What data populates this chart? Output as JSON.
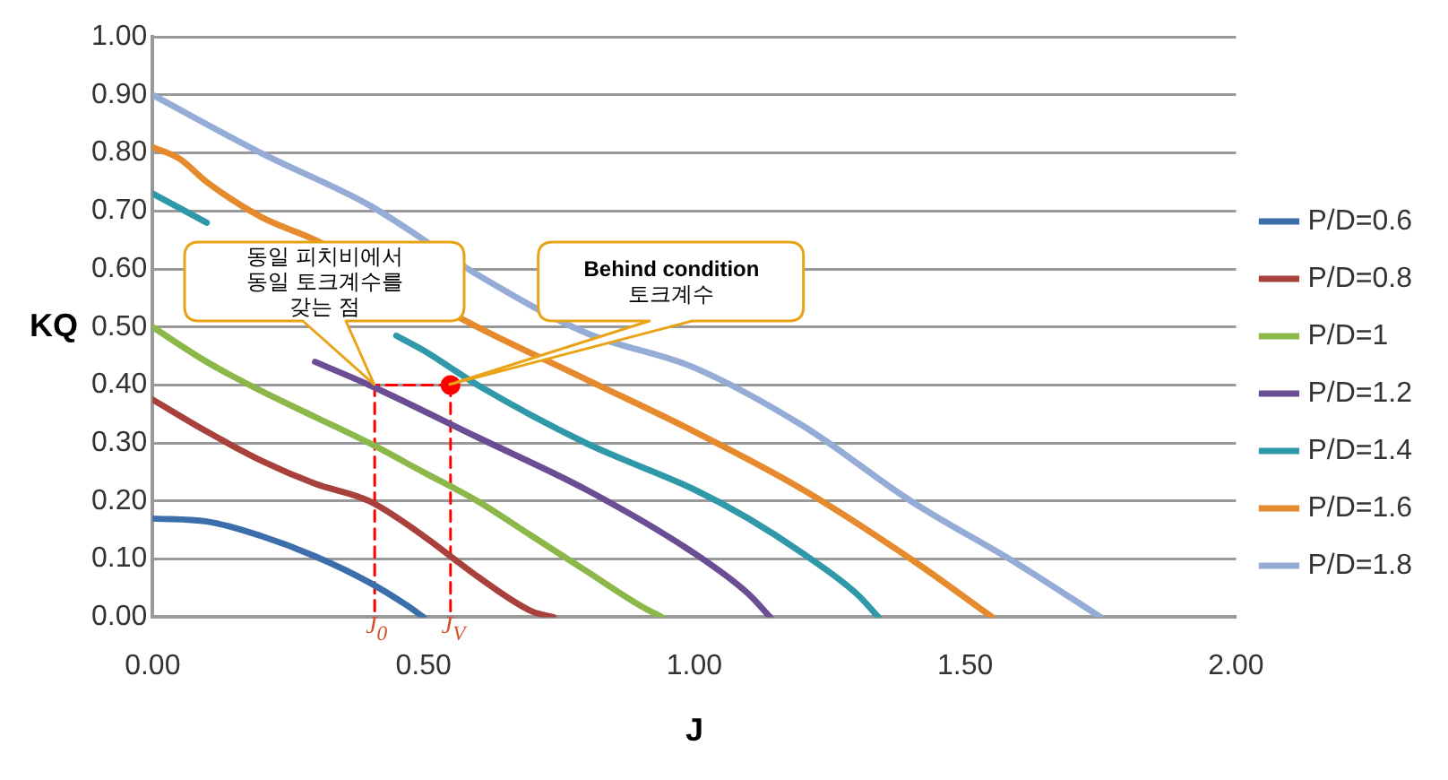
{
  "chart_data": {
    "type": "line",
    "xlabel": "J",
    "ylabel": "KQ",
    "xlim": [
      0,
      2
    ],
    "xticks": [
      {
        "value": 0,
        "label": "0.00"
      },
      {
        "value": 0.5,
        "label": "0.50"
      },
      {
        "value": 1,
        "label": "1.00"
      },
      {
        "value": 1.5,
        "label": "1.50"
      },
      {
        "value": 2,
        "label": "2.00"
      }
    ],
    "ylim": [
      0,
      1
    ],
    "yticks": [
      {
        "value": 0,
        "label": "0.00"
      },
      {
        "value": 0.1,
        "label": "0.10"
      },
      {
        "value": 0.2,
        "label": "0.20"
      },
      {
        "value": 0.3,
        "label": "0.30"
      },
      {
        "value": 0.4,
        "label": "0.40"
      },
      {
        "value": 0.5,
        "label": "0.50"
      },
      {
        "value": 0.6,
        "label": "0.60"
      },
      {
        "value": 0.7,
        "label": "0.70"
      },
      {
        "value": 0.8,
        "label": "0.80"
      },
      {
        "value": 0.9,
        "label": "0.90"
      },
      {
        "value": 1,
        "label": "1.00"
      }
    ],
    "grid": "y",
    "legend": "right",
    "marker": "none",
    "line_style": "solid",
    "series": [
      {
        "name": "P/D=0.6",
        "color": "#3c6eab",
        "x": [
          0,
          0.1,
          0.2,
          0.3,
          0.4,
          0.47,
          0.5
        ],
        "values": [
          0.17,
          0.165,
          0.14,
          0.105,
          0.06,
          0.02,
          0
        ]
      },
      {
        "name": "P/D=0.8",
        "color": "#a8403c",
        "x": [
          0,
          0.1,
          0.2,
          0.3,
          0.4,
          0.5,
          0.6,
          0.7,
          0.74
        ],
        "values": [
          0.375,
          0.32,
          0.27,
          0.23,
          0.2,
          0.14,
          0.07,
          0.01,
          0
        ]
      },
      {
        "name": "P/D=1",
        "color": "#8cb84a",
        "x": [
          0,
          0.1,
          0.2,
          0.3,
          0.4,
          0.5,
          0.6,
          0.7,
          0.8,
          0.9,
          0.94
        ],
        "values": [
          0.5,
          0.44,
          0.39,
          0.345,
          0.3,
          0.25,
          0.2,
          0.14,
          0.08,
          0.02,
          0
        ]
      },
      {
        "name": "P/D=1.2",
        "color": "#6a4d93",
        "x": [
          0.3,
          0.4,
          0.6,
          0.8,
          1.0,
          1.1,
          1.14
        ],
        "values": [
          0.44,
          0.4,
          0.31,
          0.22,
          0.11,
          0.04,
          0
        ]
      },
      {
        "name": "P/D=1.4",
        "color": "#2f98a9",
        "x": [
          0,
          0.1,
          0.2,
          0.3,
          0.45,
          0.5,
          0.6,
          0.8,
          1.0,
          1.1,
          1.2,
          1.3,
          1.34
        ],
        "values": [
          0.73,
          0.68,
          null,
          null,
          0.485,
          0.46,
          0.4,
          0.3,
          0.22,
          0.17,
          0.11,
          0.04,
          0
        ]
      },
      {
        "name": "P/D=1.6",
        "color": "#e68a2e",
        "x": [
          0,
          0.05,
          0.1,
          0.2,
          0.3,
          0.6,
          0.8,
          1.0,
          1.2,
          1.4,
          1.55
        ],
        "values": [
          0.81,
          0.79,
          0.75,
          0.69,
          0.65,
          0.5,
          0.41,
          0.32,
          0.22,
          0.1,
          0
        ]
      },
      {
        "name": "P/D=1.8",
        "color": "#95acd6",
        "x": [
          0,
          0.2,
          0.4,
          0.6,
          0.8,
          1.0,
          1.2,
          1.4,
          1.6,
          1.75
        ],
        "values": [
          0.9,
          0.8,
          0.71,
          0.59,
          0.49,
          0.43,
          0.33,
          0.2,
          0.09,
          0
        ]
      },
      {
        "type": "line",
        "line_style": "dashed",
        "color": "#ff0000",
        "x": [
          0.41,
          0.41
        ],
        "values": [
          0.4,
          0
        ]
      },
      {
        "type": "line",
        "line_style": "dashed",
        "color": "#ff0000",
        "x": [
          0.55,
          0.55
        ],
        "values": [
          0.4,
          0
        ]
      },
      {
        "type": "line",
        "line_style": "dashed",
        "color": "#ff0000",
        "x": [
          0.55,
          0.41
        ],
        "values": [
          0.4,
          0.4
        ]
      },
      {
        "type": "scatter",
        "marker": "circle",
        "color": "#ff0000",
        "x": [
          0.55
        ],
        "values": [
          0.4
        ]
      }
    ],
    "annotations": [
      "동일 피치비에서\n동일 토크계수를\n갖는 점",
      "Behind condition\n토크계수",
      "J$_{0}$",
      "J$_{V}$"
    ]
  }
}
